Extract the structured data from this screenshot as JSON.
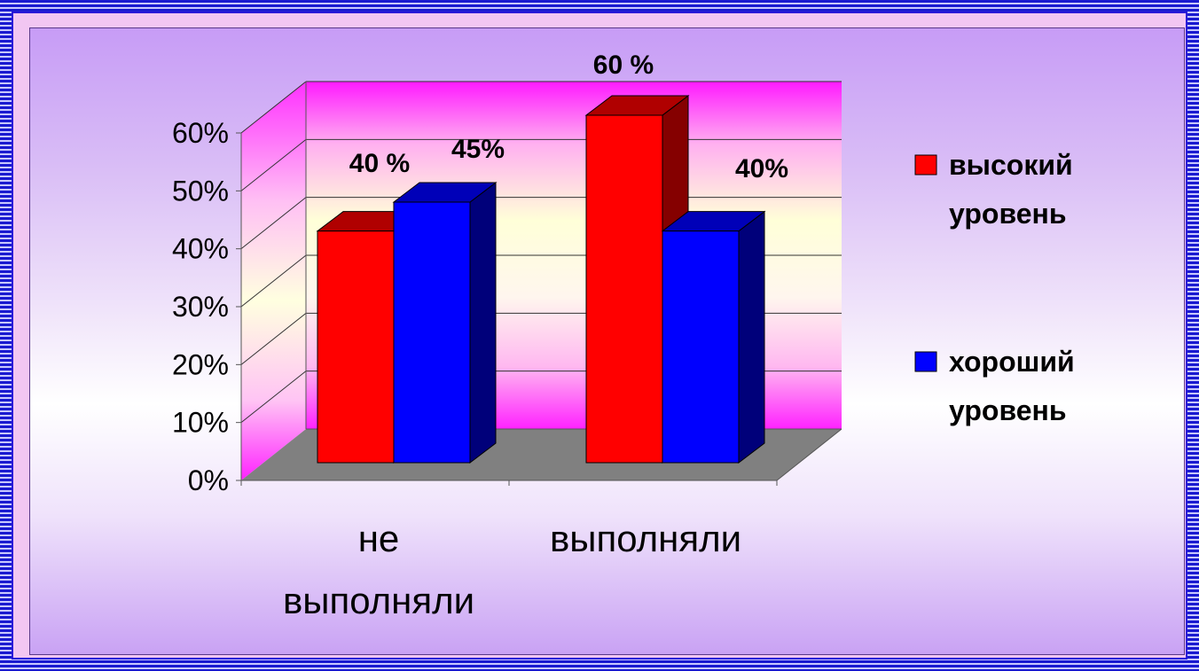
{
  "chart_data": {
    "type": "bar",
    "categories": [
      "не выполняли",
      "выполняли"
    ],
    "category_lines": [
      [
        "не",
        "выполняли"
      ],
      [
        "выполняли"
      ]
    ],
    "series": [
      {
        "name": "высокий уровень",
        "legend_lines": [
          "высокий",
          "уровень"
        ],
        "values": [
          40,
          60
        ],
        "color": "#ff0000",
        "side_color": "#850000",
        "top_color": "#b00000"
      },
      {
        "name": "хороший уровень",
        "legend_lines": [
          "хороший",
          "уровень"
        ],
        "values": [
          45,
          40
        ],
        "color": "#0000ff",
        "side_color": "#00007a",
        "top_color": "#0000b8"
      }
    ],
    "data_labels": [
      [
        "40 %",
        "60 %"
      ],
      [
        "45%",
        "40%"
      ]
    ],
    "y_ticks": [
      "0%",
      "10%",
      "20%",
      "30%",
      "40%",
      "50%",
      "60%"
    ],
    "ylim": [
      0,
      60
    ],
    "grid": true,
    "legend_position": "right",
    "three_d": true
  }
}
